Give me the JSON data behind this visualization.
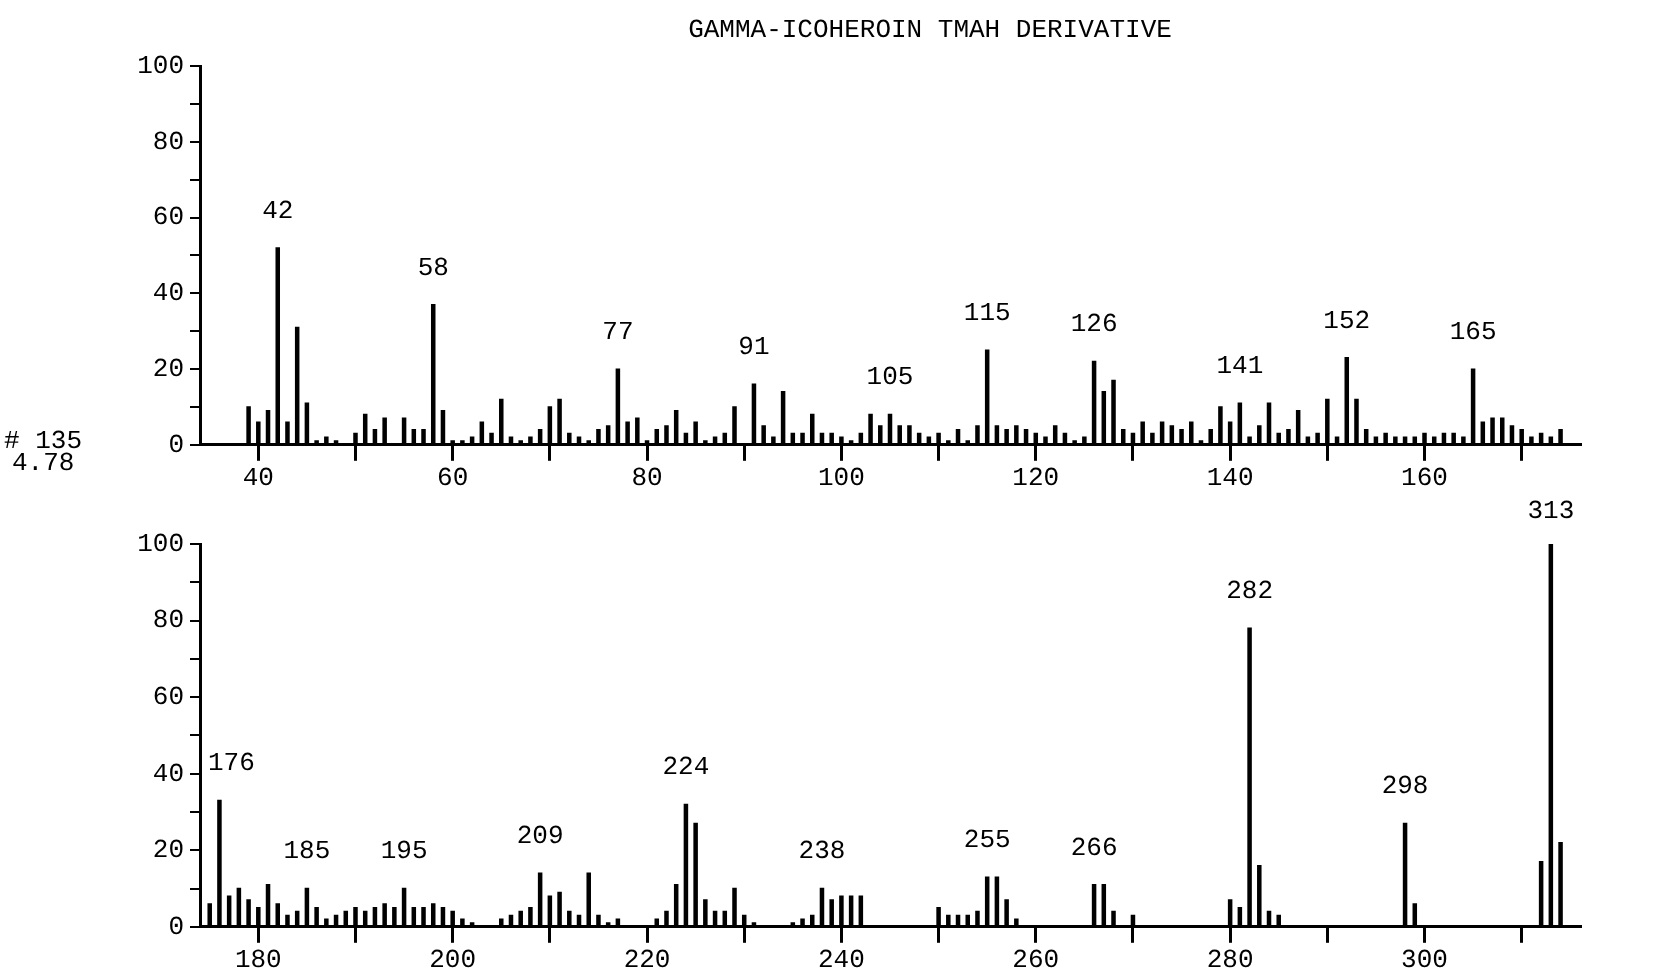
{
  "chart_data": [
    {
      "type": "bar",
      "title": "GAMMA-ICOHEROIN TMAH DERIVATIVE",
      "color": "#000000",
      "grid": false,
      "legend": false,
      "x": [
        39,
        40,
        41,
        42,
        43,
        44,
        45,
        46,
        47,
        48,
        50,
        51,
        52,
        53,
        55,
        56,
        57,
        58,
        59,
        60,
        61,
        62,
        63,
        64,
        65,
        66,
        67,
        68,
        69,
        70,
        71,
        72,
        73,
        74,
        75,
        76,
        77,
        78,
        79,
        80,
        81,
        82,
        83,
        84,
        85,
        86,
        87,
        88,
        89,
        91,
        92,
        93,
        94,
        95,
        96,
        97,
        98,
        99,
        100,
        101,
        102,
        103,
        104,
        105,
        106,
        107,
        108,
        109,
        110,
        111,
        112,
        113,
        114,
        115,
        116,
        117,
        118,
        119,
        120,
        121,
        122,
        123,
        124,
        125,
        126,
        127,
        128,
        129,
        130,
        131,
        132,
        133,
        134,
        135,
        136,
        137,
        138,
        139,
        140,
        141,
        142,
        143,
        144,
        145,
        146,
        147,
        148,
        149,
        150,
        151,
        152,
        153,
        154,
        155,
        156,
        157,
        158,
        159,
        160,
        161,
        162,
        163,
        164,
        165,
        166,
        167,
        168,
        169,
        170,
        171,
        172,
        173,
        174
      ],
      "values": [
        10,
        6,
        9,
        52,
        6,
        31,
        11,
        1,
        2,
        1,
        3,
        8,
        4,
        7,
        7,
        4,
        4,
        37,
        9,
        1,
        1,
        2,
        6,
        3,
        12,
        2,
        1,
        2,
        4,
        10,
        12,
        3,
        2,
        1,
        4,
        5,
        20,
        6,
        7,
        1,
        4,
        5,
        9,
        3,
        6,
        1,
        2,
        3,
        10,
        16,
        5,
        2,
        14,
        3,
        3,
        8,
        3,
        3,
        2,
        1,
        3,
        8,
        5,
        8,
        5,
        5,
        3,
        2,
        3,
        1,
        4,
        1,
        5,
        25,
        5,
        4,
        5,
        4,
        3,
        2,
        5,
        3,
        1,
        2,
        22,
        14,
        17,
        4,
        3,
        6,
        3,
        6,
        5,
        4,
        6,
        1,
        4,
        10,
        6,
        11,
        2,
        5,
        11,
        3,
        4,
        9,
        2,
        3,
        12,
        2,
        23,
        12,
        4,
        2,
        3,
        2,
        2,
        2,
        3,
        2,
        3,
        3,
        2,
        20,
        6,
        7,
        7,
        5,
        4,
        2,
        3,
        2,
        4
      ],
      "xlim": [
        34,
        176
      ],
      "xticks": [
        40,
        {
          "value": 50,
          "label": null
        },
        60,
        {
          "value": 70,
          "label": null
        },
        80,
        {
          "value": 90,
          "label": null
        },
        100,
        {
          "value": 110,
          "label": null
        },
        120,
        {
          "value": 130,
          "label": null
        },
        140,
        {
          "value": 150,
          "label": null
        },
        160,
        {
          "value": 170,
          "label": null
        }
      ],
      "ylim": [
        0,
        100
      ],
      "yticks": [
        0,
        {
          "value": 10,
          "label": null
        },
        20,
        {
          "value": 30,
          "label": null
        },
        40,
        {
          "value": 50,
          "label": null
        },
        60,
        {
          "value": 70,
          "label": null
        },
        80,
        {
          "value": 90,
          "label": null
        },
        100
      ],
      "annotations": [
        {
          "text": "42",
          "x": 42,
          "y": 52
        },
        {
          "text": "58",
          "x": 58,
          "y": 37
        },
        {
          "text": "77",
          "x": 77,
          "y": 20
        },
        {
          "text": "91",
          "x": 91,
          "y": 16
        },
        {
          "text": "105",
          "x": 105,
          "y": 8
        },
        {
          "text": "115",
          "x": 115,
          "y": 25
        },
        {
          "text": "126",
          "x": 126,
          "y": 22
        },
        {
          "text": "141",
          "x": 141,
          "y": 11
        },
        {
          "text": "152",
          "x": 152,
          "y": 23
        },
        {
          "text": "165",
          "x": 165,
          "y": 20
        },
        "# 135",
        "4.78"
      ]
    },
    {
      "type": "bar",
      "color": "#000000",
      "grid": false,
      "legend": false,
      "x": [
        175,
        176,
        177,
        178,
        179,
        180,
        181,
        182,
        183,
        184,
        185,
        186,
        187,
        188,
        189,
        190,
        191,
        192,
        193,
        194,
        195,
        196,
        197,
        198,
        199,
        200,
        201,
        202,
        205,
        206,
        207,
        208,
        209,
        210,
        211,
        212,
        213,
        214,
        215,
        216,
        217,
        221,
        222,
        223,
        224,
        225,
        226,
        227,
        228,
        229,
        230,
        231,
        235,
        236,
        237,
        238,
        239,
        240,
        241,
        242,
        250,
        251,
        252,
        253,
        254,
        255,
        256,
        257,
        258,
        266,
        267,
        268,
        270,
        280,
        281,
        282,
        283,
        284,
        285,
        298,
        299,
        312,
        313,
        314
      ],
      "values": [
        6,
        33,
        8,
        10,
        7,
        5,
        11,
        6,
        3,
        4,
        10,
        5,
        2,
        3,
        4,
        5,
        4,
        5,
        6,
        5,
        10,
        5,
        5,
        6,
        5,
        4,
        2,
        1,
        2,
        3,
        4,
        5,
        14,
        8,
        9,
        4,
        3,
        14,
        3,
        1,
        2,
        2,
        4,
        11,
        32,
        27,
        7,
        4,
        4,
        10,
        3,
        1,
        1,
        2,
        3,
        10,
        7,
        8,
        8,
        8,
        5,
        3,
        3,
        3,
        4,
        13,
        13,
        7,
        2,
        11,
        11,
        4,
        3,
        7,
        5,
        78,
        16,
        4,
        3,
        27,
        6,
        17,
        100,
        22
      ],
      "xlim": [
        174,
        316
      ],
      "xticks": [
        180,
        {
          "value": 190,
          "label": null
        },
        200,
        {
          "value": 210,
          "label": null
        },
        220,
        {
          "value": 230,
          "label": null
        },
        240,
        {
          "value": 250,
          "label": null
        },
        260,
        {
          "value": 270,
          "label": null
        },
        280,
        {
          "value": 290,
          "label": null
        },
        300,
        {
          "value": 310,
          "label": null
        }
      ],
      "ylim": [
        0,
        100
      ],
      "yticks": [
        0,
        {
          "value": 10,
          "label": null
        },
        20,
        {
          "value": 30,
          "label": null
        },
        40,
        {
          "value": 50,
          "label": null
        },
        60,
        {
          "value": 70,
          "label": null
        },
        80,
        {
          "value": 90,
          "label": null
        },
        100
      ],
      "annotations": [
        {
          "text": "176",
          "x": 176,
          "y": 33
        },
        {
          "text": "185",
          "x": 185,
          "y": 10
        },
        {
          "text": "195",
          "x": 195,
          "y": 10
        },
        {
          "text": "209",
          "x": 209,
          "y": 14
        },
        {
          "text": "224",
          "x": 224,
          "y": 32
        },
        {
          "text": "238",
          "x": 238,
          "y": 10
        },
        {
          "text": "255",
          "x": 255,
          "y": 13
        },
        {
          "text": "266",
          "x": 266,
          "y": 11
        },
        {
          "text": "282",
          "x": 282,
          "y": 78
        },
        {
          "text": "298",
          "x": 298,
          "y": 27
        },
        {
          "text": "313",
          "x": 313,
          "y": 100
        }
      ]
    }
  ]
}
